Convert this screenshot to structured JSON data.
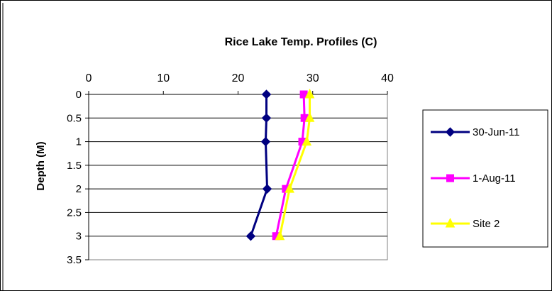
{
  "chart_data": {
    "type": "line",
    "title": "Rice Lake Temp. Profiles  (C)",
    "xlabel": "",
    "ylabel": "Depth (M)",
    "xlim": [
      0,
      40
    ],
    "ylim": [
      0,
      3.5
    ],
    "y_reversed": true,
    "x_axis_position": "top",
    "x_ticks": [
      "0",
      "10",
      "20",
      "30",
      "40"
    ],
    "y_ticks": [
      "0",
      "0.5",
      "1",
      "1.5",
      "2",
      "2.5",
      "3",
      "3.5"
    ],
    "grid": "horizontal",
    "legend_position": "right",
    "series": [
      {
        "name": "30-Jun-11",
        "color": "#000080",
        "marker": "diamond",
        "points": [
          [
            23.8,
            0
          ],
          [
            23.8,
            0.5
          ],
          [
            23.7,
            1
          ],
          [
            23.9,
            2
          ],
          [
            21.7,
            3
          ]
        ]
      },
      {
        "name": "1-Aug-11",
        "color": "#ff00ff",
        "marker": "square",
        "points": [
          [
            28.8,
            0
          ],
          [
            28.9,
            0.5
          ],
          [
            28.6,
            1
          ],
          [
            26.4,
            2
          ],
          [
            25.1,
            3
          ]
        ]
      },
      {
        "name": "Site 2",
        "color": "#ffff00",
        "marker": "triangle",
        "points": [
          [
            29.6,
            0
          ],
          [
            29.6,
            0.5
          ],
          [
            29.2,
            1
          ],
          [
            26.9,
            2
          ],
          [
            25.6,
            3
          ]
        ]
      }
    ]
  }
}
